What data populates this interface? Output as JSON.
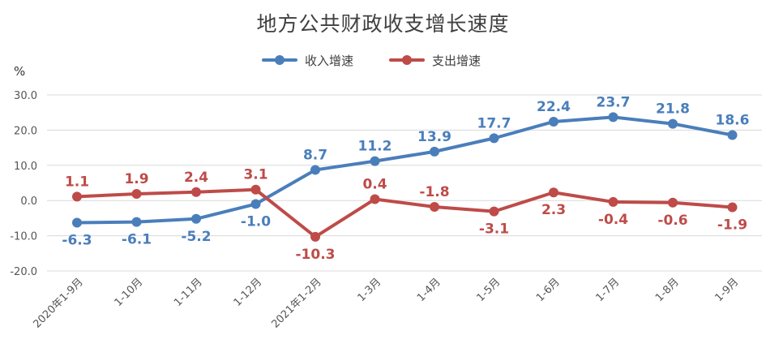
{
  "chart_data": {
    "type": "line",
    "title": "地方公共财政收支增长速度",
    "ylabel": "%",
    "ylim": [
      -20,
      30
    ],
    "yticks": [
      "30.0",
      "20.0",
      "10.0",
      "0.0",
      "-10.0",
      "-20.0"
    ],
    "grid": true,
    "legend_position": "top",
    "categories": [
      "2020年1-9月",
      "1-10月",
      "1-11月",
      "1-12月",
      "2021年1-2月",
      "1-3月",
      "1-4月",
      "1-5月",
      "1-6月",
      "1-7月",
      "1-8月",
      "1-9月"
    ],
    "series": [
      {
        "name": "收入增速",
        "color": "#4a7ebb",
        "values": [
          -6.3,
          -6.1,
          -5.2,
          -1.0,
          8.7,
          11.2,
          13.9,
          17.7,
          22.4,
          23.7,
          21.8,
          18.6
        ],
        "labels": [
          "-6.3",
          "-6.1",
          "-5.2",
          "-1.0",
          "8.7",
          "11.2",
          "13.9",
          "17.7",
          "22.4",
          "23.7",
          "21.8",
          "18.6"
        ]
      },
      {
        "name": "支出增速",
        "color": "#be4b48",
        "values": [
          1.1,
          1.9,
          2.4,
          3.1,
          -10.3,
          0.4,
          -1.8,
          -3.1,
          2.3,
          -0.4,
          -0.6,
          -1.9
        ],
        "labels": [
          "1.1",
          "1.9",
          "2.4",
          "3.1",
          "-10.3",
          "0.4",
          "-1.8",
          "-3.1",
          "2.3",
          "-0.4",
          "-0.6",
          "-1.9"
        ]
      }
    ]
  }
}
